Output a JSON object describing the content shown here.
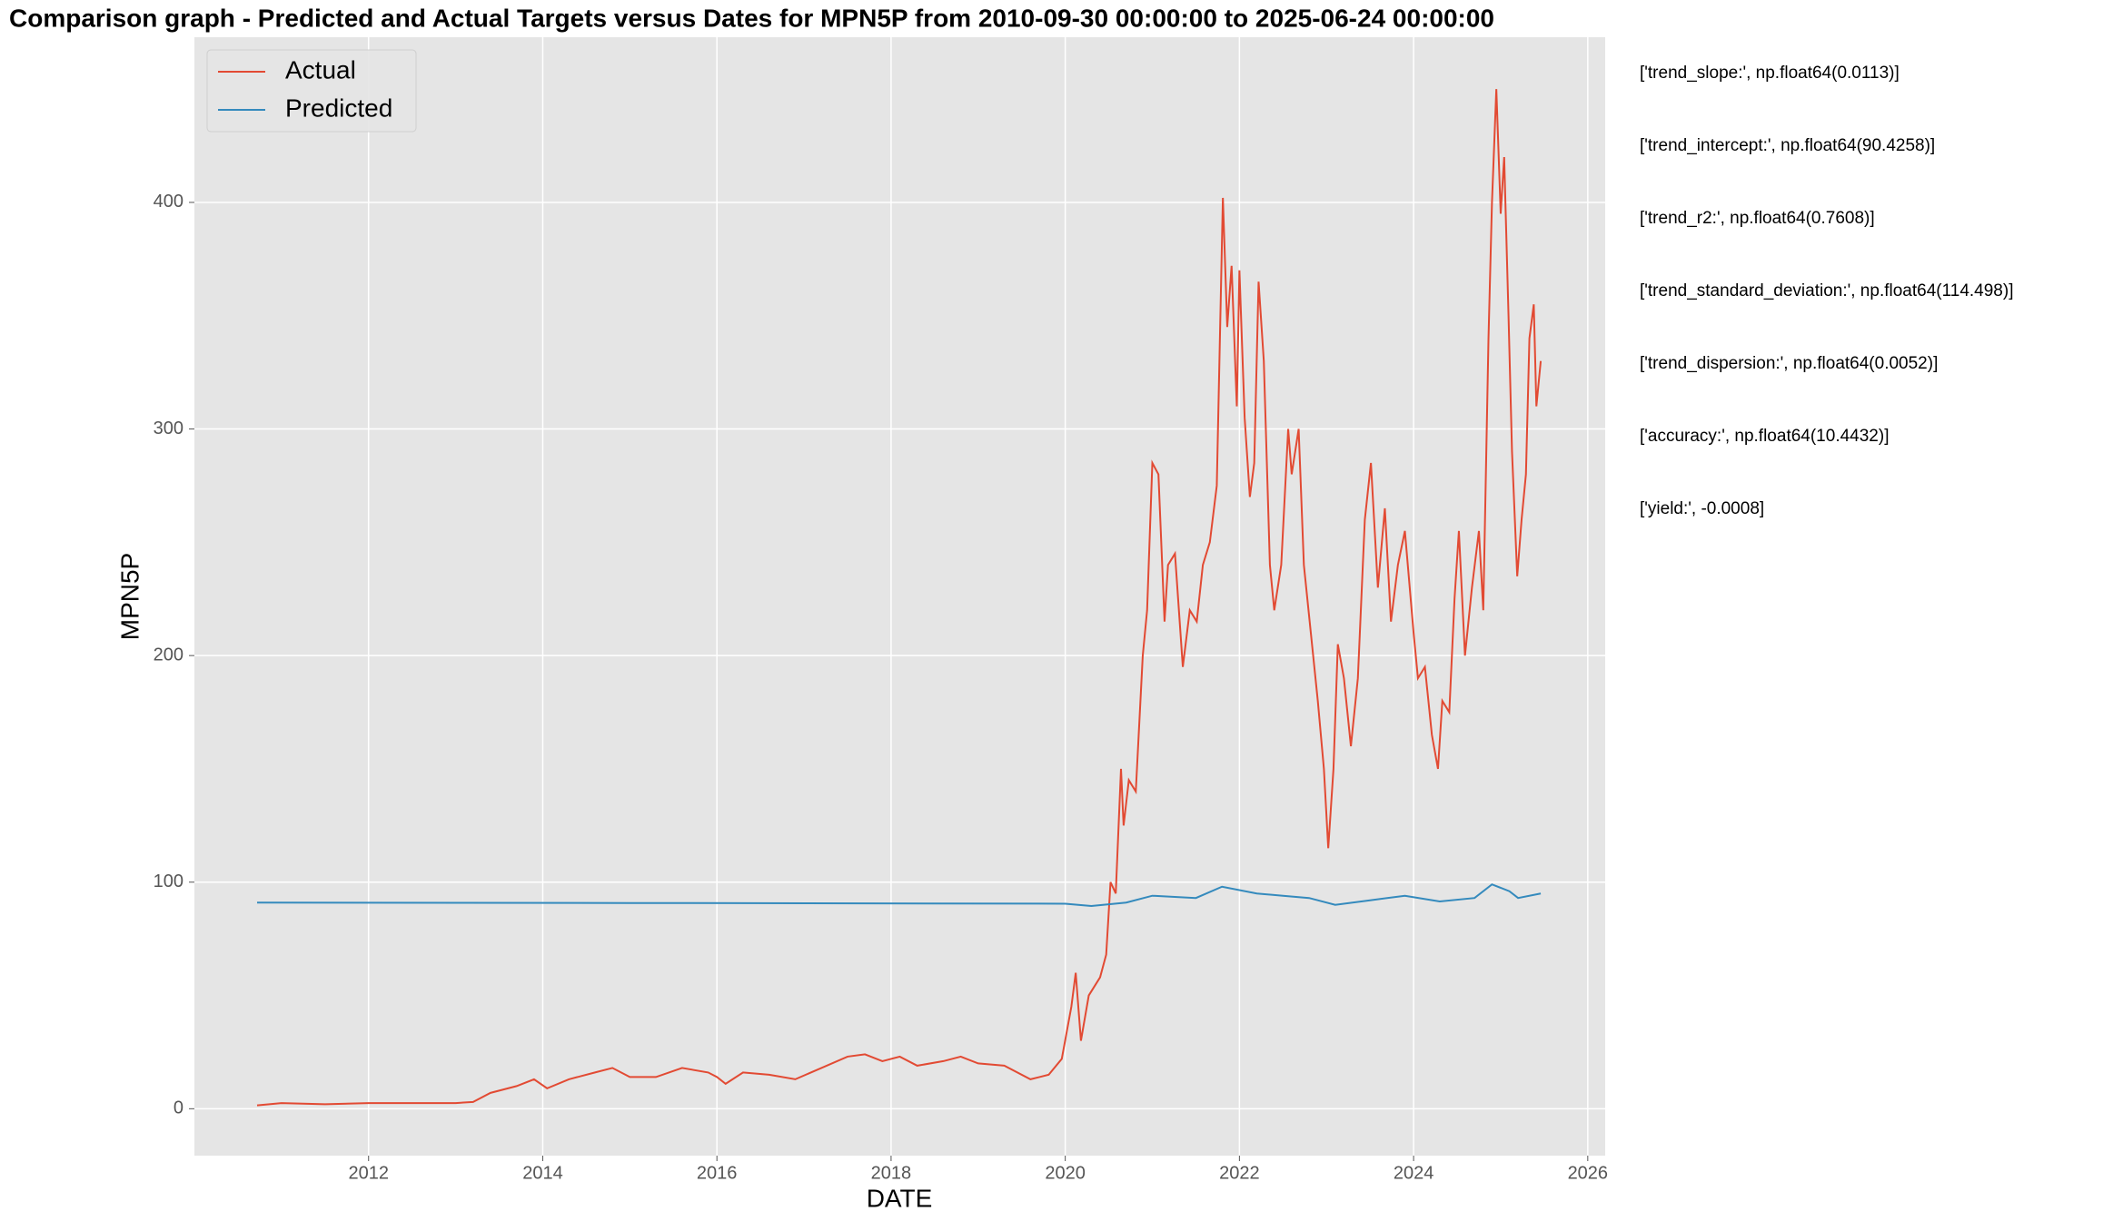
{
  "chart_data": {
    "type": "line",
    "title": "Comparison graph - Predicted and Actual Targets versus Dates for MPN5P from 2010-09-30 00:00:00 to 2025-06-24 00:00:00",
    "x_label": "DATE",
    "y_label": "MPN5P",
    "xlim": [
      2010.0,
      2026.2
    ],
    "xticks": [
      2012,
      2014,
      2016,
      2018,
      2020,
      2022,
      2024,
      2026
    ],
    "ylim": [
      -20.7,
      472.9
    ],
    "yticks": [
      0,
      100,
      200,
      300,
      400
    ],
    "grid": true,
    "legend": "upper left",
    "series": [
      {
        "name": "Actual",
        "color": "#E24A33",
        "x": [
          2010.72,
          2011.0,
          2011.5,
          2012.0,
          2012.5,
          2013.0,
          2013.2,
          2013.4,
          2013.7,
          2013.9,
          2014.05,
          2014.3,
          2014.6,
          2014.8,
          2015.0,
          2015.3,
          2015.6,
          2015.9,
          2016.0,
          2016.1,
          2016.3,
          2016.6,
          2016.9,
          2017.2,
          2017.5,
          2017.7,
          2017.9,
          2018.1,
          2018.3,
          2018.6,
          2018.8,
          2019.0,
          2019.3,
          2019.6,
          2019.81,
          2019.96,
          2020.07,
          2020.12,
          2020.18,
          2020.27,
          2020.4,
          2020.47,
          2020.52,
          2020.58,
          2020.64,
          2020.67,
          2020.73,
          2020.81,
          2020.89,
          2020.94,
          2021.0,
          2021.07,
          2021.14,
          2021.18,
          2021.26,
          2021.35,
          2021.43,
          2021.51,
          2021.58,
          2021.66,
          2021.74,
          2021.81,
          2021.86,
          2021.91,
          2021.97,
          2022.0,
          2022.06,
          2022.12,
          2022.17,
          2022.22,
          2022.28,
          2022.35,
          2022.4,
          2022.48,
          2022.56,
          2022.6,
          2022.68,
          2022.74,
          2022.82,
          2022.9,
          2022.97,
          2023.02,
          2023.08,
          2023.13,
          2023.2,
          2023.28,
          2023.36,
          2023.44,
          2023.51,
          2023.59,
          2023.67,
          2023.74,
          2023.82,
          2023.9,
          2024.0,
          2024.05,
          2024.13,
          2024.21,
          2024.28,
          2024.33,
          2024.41,
          2024.47,
          2024.52,
          2024.59,
          2024.67,
          2024.75,
          2024.8,
          2024.86,
          2024.9,
          2024.95,
          2025.0,
          2025.04,
          2025.09,
          2025.13,
          2025.19,
          2025.24,
          2025.29,
          2025.33,
          2025.38,
          2025.41,
          2025.46
        ],
        "values": [
          1.5,
          2.5,
          2,
          2.5,
          2.5,
          2.5,
          3,
          7,
          10,
          13,
          9,
          13,
          16,
          18,
          14,
          14,
          18,
          16,
          14,
          11,
          16,
          15,
          13,
          18,
          23,
          24,
          21,
          23,
          19,
          21,
          23,
          20,
          19,
          13,
          15,
          22,
          45,
          60,
          30,
          50,
          58,
          68,
          100,
          95,
          150,
          125,
          145,
          140,
          200,
          220,
          285,
          280,
          215,
          240,
          245,
          195,
          220,
          215,
          240,
          250,
          275,
          402,
          345,
          372,
          310,
          370,
          305,
          270,
          285,
          365,
          330,
          240,
          220,
          240,
          300,
          280,
          300,
          240,
          210,
          180,
          150,
          115,
          150,
          205,
          190,
          160,
          190,
          260,
          285,
          230,
          265,
          215,
          240,
          255,
          210,
          190,
          195,
          165,
          150,
          180,
          175,
          225,
          255,
          200,
          230,
          255,
          220,
          340,
          400,
          450,
          395,
          420,
          350,
          290,
          235,
          260,
          280,
          340,
          355,
          310,
          330
        ]
      },
      {
        "name": "Predicted",
        "color": "#348ABD",
        "x": [
          2010.72,
          2015.0,
          2020.0,
          2020.3,
          2020.7,
          2021.0,
          2021.5,
          2021.8,
          2022.2,
          2022.5,
          2022.8,
          2023.1,
          2023.5,
          2023.9,
          2024.3,
          2024.7,
          2024.9,
          2025.1,
          2025.2,
          2025.46
        ],
        "values": [
          91,
          90.8,
          90.5,
          89.5,
          91,
          94,
          93,
          98,
          95,
          94,
          93,
          90,
          92,
          94,
          91.5,
          93,
          99,
          96,
          93,
          95
        ]
      }
    ],
    "annotations": [
      "['trend_slope:', np.float64(0.0113)]",
      "['trend_intercept:', np.float64(90.4258)]",
      "['trend_r2:', np.float64(0.7608)]",
      "['trend_standard_deviation:', np.float64(114.498)]",
      "['trend_dispersion:', np.float64(0.0052)]",
      "['accuracy:', np.float64(10.4432)]",
      "['yield:', -0.0008]"
    ]
  }
}
